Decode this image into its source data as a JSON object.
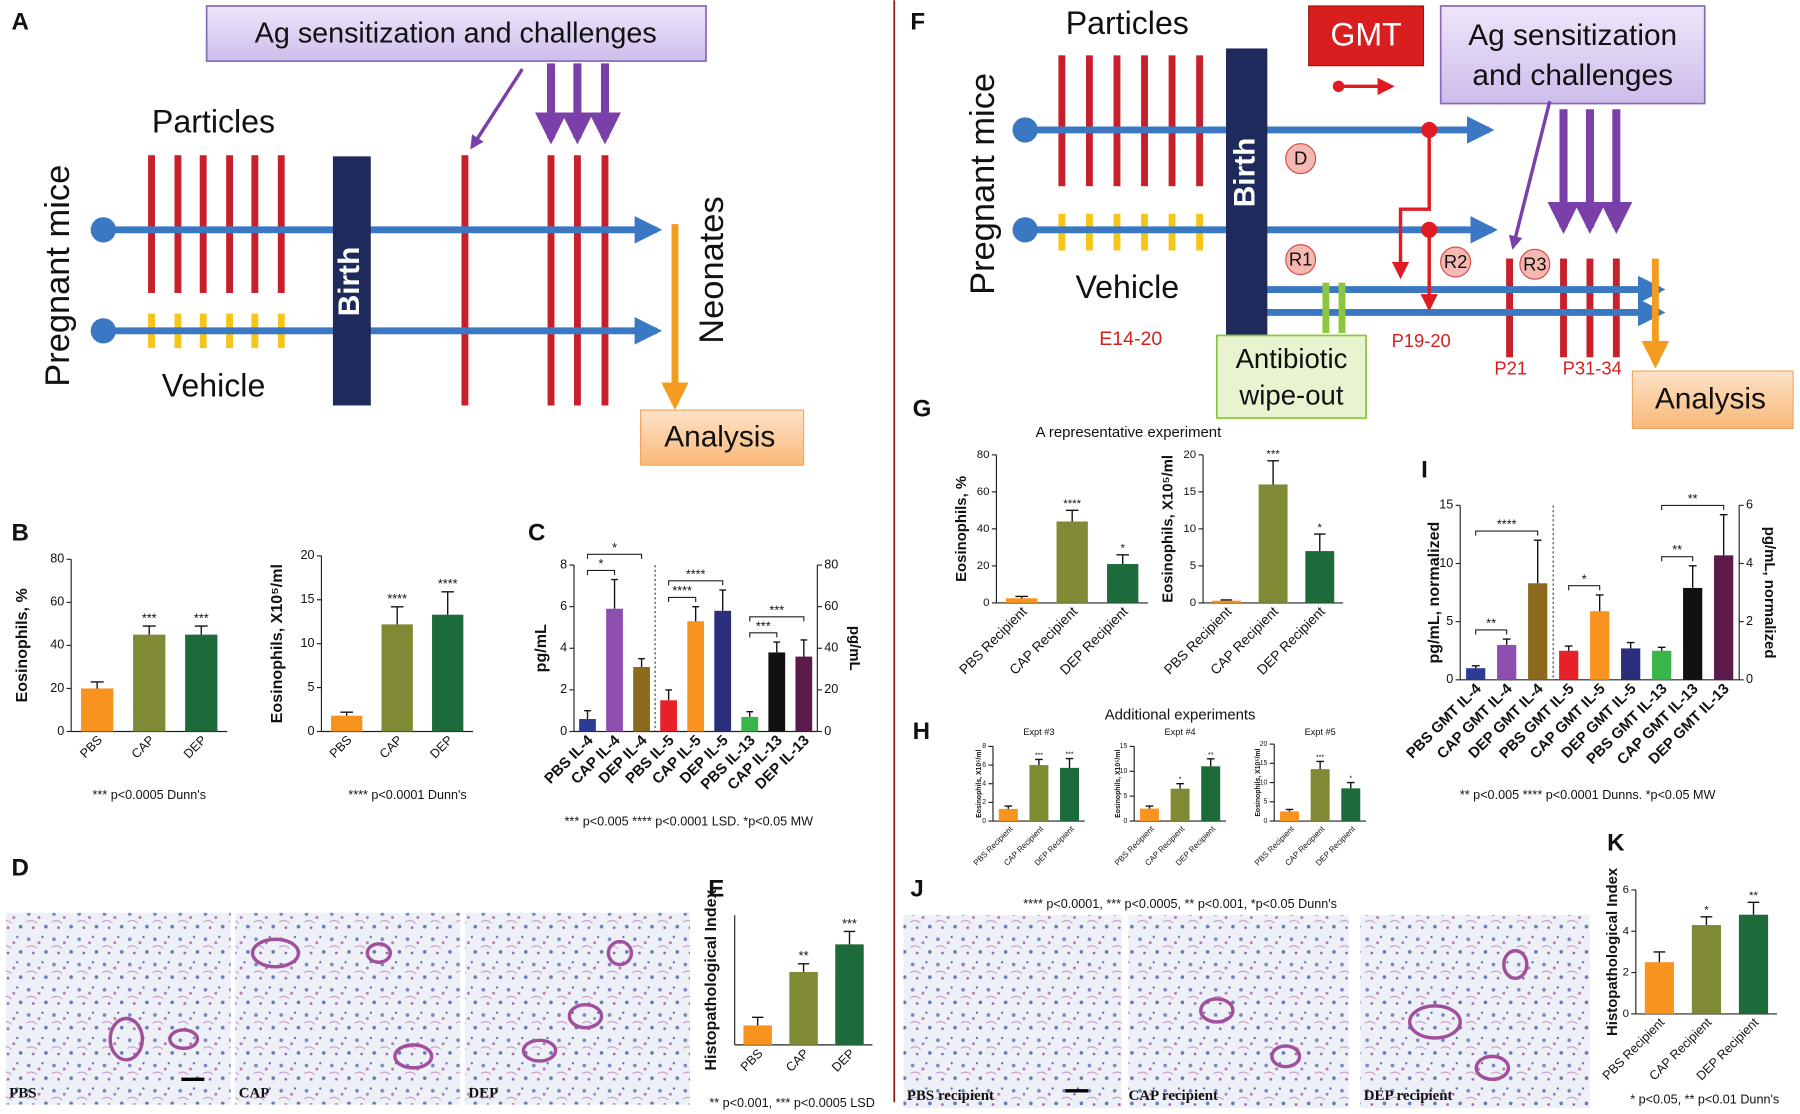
{
  "schematic_A": {
    "panel": "A",
    "box": "Ag sensitization and challenges",
    "particles": "Particles",
    "vehicle": "Vehicle",
    "pregnant": "Pregnant mice",
    "birth": "Birth",
    "neonates": "Neonates",
    "analysis": "Analysis"
  },
  "schematic_F": {
    "panel": "F",
    "particles": "Particles",
    "gmt": "GMT",
    "box_line1": "Ag sensitization",
    "box_line2": "and challenges",
    "pregnant": "Pregnant mice",
    "birth": "Birth",
    "vehicle": "Vehicle",
    "e14": "E14-20",
    "antibiotic_line1": "Antibiotic",
    "antibiotic_line2": "wipe-out",
    "analysis": "Analysis",
    "nodes": [
      "D",
      "R1",
      "R2",
      "R3"
    ],
    "p19": "P19-20",
    "p21": "P21",
    "p31": "P31-34"
  },
  "histology_D": {
    "panel": "D",
    "labels": [
      "PBS",
      "CAP",
      "DEP"
    ]
  },
  "histology_J": {
    "panel": "J",
    "labels": [
      "PBS recipient",
      "CAP recipient",
      "DEP recipient"
    ]
  },
  "group_G_title": "A representative experiment",
  "group_H_title": "Additional experiments",
  "chart_data": [
    {
      "type": "bar",
      "panel": "B",
      "ylabel": "Eosinophils, %",
      "categories": [
        "PBS",
        "CAP",
        "DEP"
      ],
      "values": [
        20,
        45,
        45
      ],
      "errors": [
        3,
        4,
        4
      ],
      "colors": [
        "#f7931e",
        "#808a35",
        "#1d6b3b"
      ],
      "annotations": [
        null,
        "***",
        "***"
      ],
      "ylim": [
        0,
        80
      ],
      "yticks": [
        0,
        20,
        40,
        60,
        80
      ],
      "note": "*** p<0.0005 Dunn's"
    },
    {
      "type": "bar",
      "ylabel": "Eosinophils, X10⁵/ml",
      "categories": [
        "PBS",
        "CAP",
        "DEP"
      ],
      "values": [
        1.8,
        12.2,
        13.3
      ],
      "errors": [
        0.4,
        2,
        2.6
      ],
      "colors": [
        "#f7931e",
        "#808a35",
        "#1d6b3b"
      ],
      "annotations": [
        null,
        "****",
        "****"
      ],
      "ylim": [
        0,
        20
      ],
      "yticks": [
        0,
        5,
        10,
        15,
        20
      ],
      "note": "**** p<0.0001 Dunn's"
    },
    {
      "type": "bar",
      "panel": "C",
      "ylabel": "pg/mL",
      "y2label": "pg/mL",
      "categories": [
        "PBS IL-4",
        "CAP IL-4",
        "DEP IL-4",
        "PBS IL-5",
        "CAP IL-5",
        "DEP IL-5",
        "PBS IL-13",
        "CAP IL-13",
        "DEP IL-13"
      ],
      "values": [
        0.6,
        5.9,
        3.1,
        1.5,
        5.3,
        5.8,
        0.7,
        3.8,
        3.6
      ],
      "errors": [
        0.4,
        1.4,
        0.4,
        0.5,
        0.7,
        1.0,
        0.25,
        0.5,
        0.8
      ],
      "colors": [
        "#2e3b96",
        "#8e4fb0",
        "#8b6a1e",
        "#e8202a",
        "#f7931e",
        "#2b2e7a",
        "#39b54a",
        "#111111",
        "#5b1a4a"
      ],
      "brackets": [
        {
          "label": "*",
          "pair": [
            "PBS IL-4",
            "CAP IL-4"
          ]
        },
        {
          "label": "*",
          "pair": [
            "PBS IL-4",
            "DEP IL-4"
          ]
        },
        {
          "label": "****",
          "pair": [
            "PBS IL-5",
            "CAP IL-5"
          ]
        },
        {
          "label": "****",
          "pair": [
            "PBS IL-5",
            "DEP IL-5"
          ]
        },
        {
          "label": "***",
          "pair": [
            "PBS IL-13",
            "CAP IL-13"
          ]
        },
        {
          "label": "***",
          "pair": [
            "PBS IL-13",
            "DEP IL-13"
          ]
        }
      ],
      "ylim": [
        0,
        8
      ],
      "yticks": [
        0,
        2,
        4,
        6,
        8
      ],
      "y2lim": [
        0,
        80
      ],
      "y2ticks": [
        0,
        20,
        40,
        60,
        80
      ],
      "note": "*** p<0.005 **** p<0.0001 LSD. *p<0.05 MW"
    },
    {
      "type": "bar",
      "panel": "E",
      "ylabel": "Histopathological Index",
      "categories": [
        "PBS",
        "CAP",
        "DEP"
      ],
      "values": [
        1.2,
        4.5,
        6.2
      ],
      "errors": [
        0.5,
        0.5,
        0.8
      ],
      "colors": [
        "#f7931e",
        "#808a35",
        "#1d6b3b"
      ],
      "annotations": [
        null,
        "**",
        "***"
      ],
      "ylim": [
        0,
        8
      ],
      "note": "** p<0.001, *** p<0.0005 LSD"
    },
    {
      "type": "bar",
      "panel": "G",
      "ylabel": "Eosinophils, %",
      "categories": [
        "PBS Recipient",
        "CAP Recipient",
        "DEP Recipient"
      ],
      "values": [
        2.5,
        44,
        21
      ],
      "errors": [
        1,
        6,
        5
      ],
      "colors": [
        "#f7931e",
        "#808a35",
        "#1d6b3b"
      ],
      "annotations": [
        null,
        "****",
        "*"
      ],
      "ylim": [
        0,
        80
      ],
      "yticks": [
        0,
        20,
        40,
        60,
        80
      ]
    },
    {
      "type": "bar",
      "ylabel": "Eosinophils, X10⁵/ml",
      "categories": [
        "PBS Recipient",
        "CAP Recipient",
        "DEP Recipient"
      ],
      "values": [
        0.3,
        16,
        7
      ],
      "errors": [
        0.1,
        3.2,
        2.3
      ],
      "colors": [
        "#f7931e",
        "#808a35",
        "#1d6b3b"
      ],
      "annotations": [
        null,
        "***",
        "*"
      ],
      "ylim": [
        0,
        20
      ],
      "yticks": [
        0,
        5,
        10,
        15,
        20
      ]
    },
    {
      "type": "bar",
      "panel": "H",
      "title": "Expt #3",
      "ylabel": "Eosinophils, X10⁵/ml",
      "categories": [
        "PBS Recipient",
        "CAP Recipient",
        "DEP Recipient"
      ],
      "values": [
        1.3,
        6,
        5.7
      ],
      "errors": [
        0.3,
        0.6,
        1
      ],
      "colors": [
        "#f7931e",
        "#808a35",
        "#1d6b3b"
      ],
      "annotations": [
        null,
        "***",
        "***"
      ],
      "ylim": [
        0,
        8
      ],
      "yticks": [
        0,
        2,
        4,
        6,
        8
      ]
    },
    {
      "type": "bar",
      "title": "Expt #4",
      "ylabel": "Eosinophils, X10⁵/ml",
      "categories": [
        "PBS Recipient",
        "CAP Recipient",
        "DEP Recipient"
      ],
      "values": [
        2.5,
        6.5,
        11
      ],
      "errors": [
        0.5,
        1,
        1.5
      ],
      "colors": [
        "#f7931e",
        "#808a35",
        "#1d6b3b"
      ],
      "annotations": [
        null,
        "*",
        "**"
      ],
      "ylim": [
        0,
        15
      ],
      "yticks": [
        0,
        5,
        10,
        15
      ]
    },
    {
      "type": "bar",
      "title": "Expt #5",
      "ylabel": "Eosinophils, X10⁵/ml",
      "categories": [
        "PBS Recipient",
        "CAP Recipient",
        "DEP Recipient"
      ],
      "values": [
        2.5,
        13.5,
        8.5
      ],
      "errors": [
        0.5,
        2,
        1.5
      ],
      "colors": [
        "#f7931e",
        "#808a35",
        "#1d6b3b"
      ],
      "annotations": [
        null,
        "***",
        "*"
      ],
      "ylim": [
        0,
        20
      ],
      "yticks": [
        0,
        5,
        10,
        15,
        20
      ],
      "note": "**** p<0.0001, *** p<0.0005, ** p<0.001, *p<0.05 Dunn's"
    },
    {
      "type": "bar",
      "panel": "I",
      "ylabel": "pg/mL, normalized",
      "y2label": "pg/mL, normalized",
      "categories": [
        "PBS GMT IL-4",
        "CAP GMT IL-4",
        "DEP GMT IL-4",
        "PBS GMT IL-5",
        "CAP GMT IL-5",
        "DEP GMT IL-5",
        "PBS GMT IL-13",
        "CAP GMT IL-13",
        "DEP GMT IL-13"
      ],
      "values": [
        1,
        3,
        8.3,
        2.5,
        5.9,
        2.7,
        2.5,
        7.9,
        10.7
      ],
      "errors": [
        0.2,
        0.5,
        3.7,
        0.4,
        1.4,
        0.5,
        0.3,
        1.9,
        3.5
      ],
      "colors": [
        "#2e3b96",
        "#8e4fb0",
        "#8b6a1e",
        "#e8202a",
        "#f7931e",
        "#2b2e7a",
        "#39b54a",
        "#111111",
        "#5b1a4a"
      ],
      "brackets": [
        {
          "label": "**",
          "pair": [
            "PBS GMT IL-4",
            "CAP GMT IL-4"
          ]
        },
        {
          "label": "****",
          "pair": [
            "PBS GMT IL-4",
            "DEP GMT IL-4"
          ]
        },
        {
          "label": "*",
          "pair": [
            "PBS GMT IL-5",
            "CAP GMT IL-5"
          ]
        },
        {
          "label": "**",
          "pair": [
            "PBS GMT IL-13",
            "CAP GMT IL-13"
          ]
        },
        {
          "label": "**",
          "pair": [
            "PBS GMT IL-13",
            "DEP GMT IL-13"
          ]
        }
      ],
      "ylim": [
        0,
        15
      ],
      "yticks": [
        0,
        5,
        10,
        15
      ],
      "y2lim": [
        0,
        6
      ],
      "y2ticks": [
        0,
        2,
        4,
        6
      ],
      "note": "** p<0.005 **** p<0.0001 Dunns. *p<0.05 MW"
    },
    {
      "type": "bar",
      "panel": "K",
      "ylabel": "Histopathological Index",
      "categories": [
        "PBS Recipient",
        "CAP Recipient",
        "DEP Recipient"
      ],
      "values": [
        2.5,
        4.3,
        4.8
      ],
      "errors": [
        0.5,
        0.4,
        0.6
      ],
      "colors": [
        "#f7931e",
        "#808a35",
        "#1d6b3b"
      ],
      "annotations": [
        null,
        "*",
        "**"
      ],
      "ylim": [
        0,
        6
      ],
      "yticks": [
        0,
        2,
        4,
        6
      ],
      "note": "* p<0.05, ** p<0.01 Dunn's"
    }
  ]
}
